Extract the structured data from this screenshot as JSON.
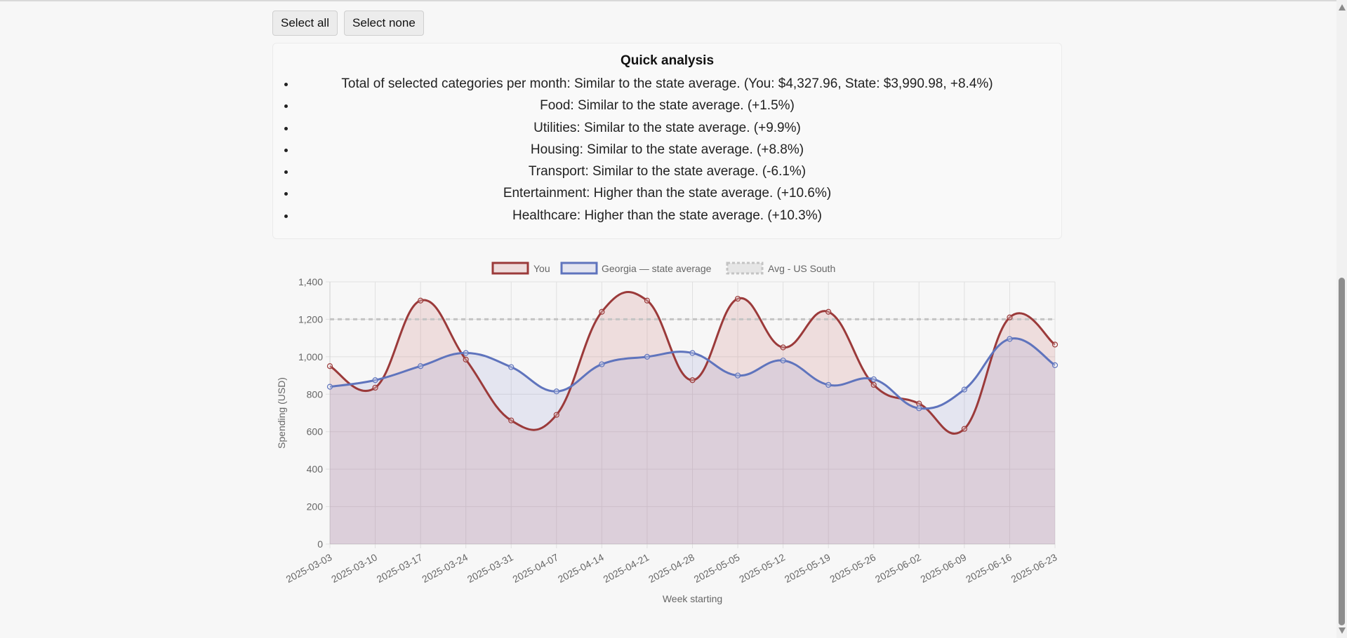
{
  "buttons": {
    "select_all": "Select all",
    "select_none": "Select none"
  },
  "analysis": {
    "title": "Quick analysis",
    "items": [
      "Total of selected categories per month: Similar to the state average. (You: $4,327.96, State: $3,990.98, +8.4%)",
      "Food: Similar to the state average. (+1.5%)",
      "Utilities: Similar to the state average. (+9.9%)",
      "Housing: Similar to the state average. (+8.8%)",
      "Transport: Similar to the state average. (-6.1%)",
      "Entertainment: Higher than the state average. (+10.6%)",
      "Healthcare: Higher than the state average. (+10.3%)"
    ]
  },
  "chart_data": {
    "type": "line",
    "xlabel": "Week starting",
    "ylabel": "Spending (USD)",
    "ylim": [
      0,
      1400
    ],
    "yticks": [
      0,
      200,
      400,
      600,
      800,
      1000,
      1200,
      1400
    ],
    "categories": [
      "2025-03-03",
      "2025-03-10",
      "2025-03-17",
      "2025-03-24",
      "2025-03-31",
      "2025-04-07",
      "2025-04-14",
      "2025-04-21",
      "2025-04-28",
      "2025-05-05",
      "2025-05-12",
      "2025-05-19",
      "2025-05-26",
      "2025-06-02",
      "2025-06-09",
      "2025-06-16",
      "2025-06-23"
    ],
    "grid": true,
    "legend_position": "top",
    "series": [
      {
        "name": "You",
        "color": "#9b3a3a",
        "fill": "rgba(204,120,120,0.2)",
        "values": [
          950,
          835,
          1300,
          985,
          660,
          690,
          1240,
          1300,
          875,
          1310,
          1050,
          1240,
          850,
          750,
          615,
          1210,
          1065
        ]
      },
      {
        "name": "Georgia — state average",
        "color": "#5f74bd",
        "fill": "rgba(120,130,200,0.15)",
        "values": [
          840,
          875,
          950,
          1020,
          945,
          815,
          960,
          1000,
          1020,
          900,
          980,
          850,
          880,
          725,
          825,
          1095,
          955
        ]
      },
      {
        "name": "Avg - US South",
        "color": "#c4c4c4",
        "dashed": true,
        "values_constant": 1200
      }
    ]
  }
}
